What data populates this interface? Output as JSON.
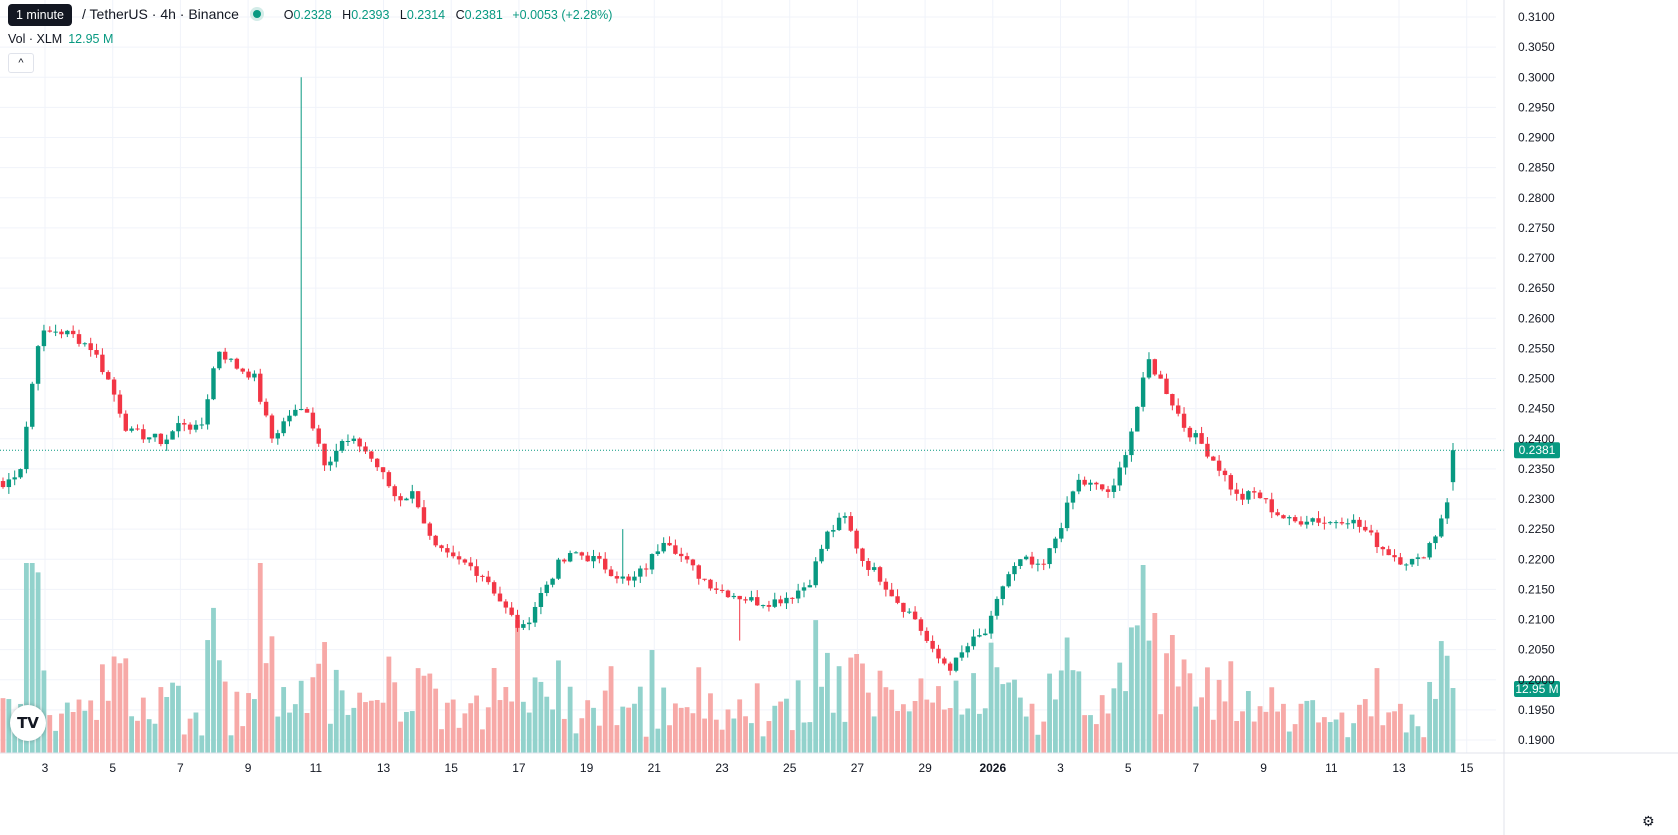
{
  "tooltip": "1 minute",
  "header": {
    "title": "/ TetherUS · 4h · Binance",
    "o_label": "O",
    "o": "0.2328",
    "h_label": "H",
    "h": "0.2393",
    "l_label": "L",
    "l": "0.2314",
    "c_label": "C",
    "c": "0.2381",
    "change": "+0.0053 (+2.28%)"
  },
  "volume": {
    "label": "Vol · XLM",
    "value": "12.95 M"
  },
  "collapse_icon": "chevron-up-icon",
  "logo_icon": "tradingview-logo-icon",
  "settings_icon": "gear-icon",
  "colors": {
    "up": "#089981",
    "down": "#f23645",
    "up_vol": "#92d2cc",
    "down_vol": "#f7a9a7"
  },
  "chart_data": {
    "type": "candlestick",
    "ylim": [
      0.1875,
      0.3115
    ],
    "y_ticks": [
      "0.3100",
      "0.3050",
      "0.3000",
      "0.2950",
      "0.2900",
      "0.2850",
      "0.2800",
      "0.2750",
      "0.2700",
      "0.2650",
      "0.2600",
      "0.2550",
      "0.2500",
      "0.2450",
      "0.2400",
      "0.2350",
      "0.2300",
      "0.2250",
      "0.2200",
      "0.2150",
      "0.2100",
      "0.2050",
      "0.2000",
      "0.1950",
      "0.1900"
    ],
    "x_ticks": [
      "3",
      "5",
      "7",
      "9",
      "11",
      "13",
      "15",
      "17",
      "19",
      "21",
      "23",
      "25",
      "27",
      "29",
      "2026",
      "3",
      "5",
      "7",
      "9",
      "11",
      "13",
      "15"
    ],
    "last_price": "0.2381",
    "last_volume": "12.95 M",
    "anchors": [
      [
        0.232,
        0.2335,
        0.2282,
        0.227
      ],
      [
        0.2355,
        0.2395,
        0.234,
        0.233
      ],
      [
        0.257,
        0.26,
        0.252,
        0.251
      ],
      [
        0.258,
        0.263,
        0.256,
        0.254
      ],
      [
        0.257,
        0.261,
        0.2545,
        0.253
      ],
      [
        0.255,
        0.258,
        0.252,
        0.25
      ],
      [
        0.249,
        0.252,
        0.246,
        0.245
      ],
      [
        0.241,
        0.244,
        0.238,
        0.237
      ],
      [
        0.2405,
        0.243,
        0.2385,
        0.2375
      ],
      [
        0.2395,
        0.242,
        0.236,
        0.234
      ],
      [
        0.243,
        0.247,
        0.24,
        0.239
      ],
      [
        0.241,
        0.245,
        0.239,
        0.238
      ],
      [
        0.255,
        0.259,
        0.25,
        0.248
      ],
      [
        0.252,
        0.256,
        0.25,
        0.249
      ],
      [
        0.2505,
        0.256,
        0.249,
        0.248
      ],
      [
        0.24,
        0.3,
        0.239,
        0.237
      ],
      [
        0.244,
        0.249,
        0.24,
        0.239
      ],
      [
        0.245,
        0.248,
        0.242,
        0.24
      ],
      [
        0.236,
        0.242,
        0.234,
        0.232
      ],
      [
        0.2395,
        0.241,
        0.238,
        0.237
      ],
      [
        0.239,
        0.2405,
        0.2375,
        0.236
      ],
      [
        0.235,
        0.238,
        0.232,
        0.231
      ],
      [
        0.23,
        0.232,
        0.227,
        0.226
      ],
      [
        0.231,
        0.233,
        0.228,
        0.227
      ],
      [
        0.222,
        0.226,
        0.219,
        0.216
      ],
      [
        0.22,
        0.224,
        0.216,
        0.215
      ],
      [
        0.219,
        0.223,
        0.217,
        0.216
      ],
      [
        0.217,
        0.22,
        0.213,
        0.212
      ],
      [
        0.212,
        0.216,
        0.209,
        0.208
      ],
      [
        0.208,
        0.213,
        0.204,
        0.203
      ],
      [
        0.214,
        0.218,
        0.21,
        0.209
      ],
      [
        0.219,
        0.222,
        0.216,
        0.215
      ],
      [
        0.221,
        0.223,
        0.219,
        0.218
      ],
      [
        0.22,
        0.223,
        0.219,
        0.217
      ],
      [
        0.218,
        0.22,
        0.216,
        0.215
      ],
      [
        0.216,
        0.219,
        0.215,
        0.214
      ],
      [
        0.219,
        0.222,
        0.217,
        0.216
      ],
      [
        0.224,
        0.2265,
        0.22,
        0.219
      ],
      [
        0.22,
        0.223,
        0.217,
        0.216
      ],
      [
        0.217,
        0.22,
        0.215,
        0.214
      ],
      [
        0.215,
        0.218,
        0.212,
        0.211
      ],
      [
        0.214,
        0.217,
        0.212,
        0.211
      ],
      [
        0.213,
        0.216,
        0.21,
        0.209
      ],
      [
        0.213,
        0.216,
        0.211,
        0.21
      ],
      [
        0.214,
        0.216,
        0.212,
        0.211
      ],
      [
        0.216,
        0.219,
        0.214,
        0.213
      ],
      [
        0.224,
        0.226,
        0.22,
        0.219
      ],
      [
        0.227,
        0.228,
        0.223,
        0.222
      ],
      [
        0.22,
        0.223,
        0.218,
        0.217
      ],
      [
        0.217,
        0.22,
        0.215,
        0.214
      ],
      [
        0.213,
        0.216,
        0.211,
        0.21
      ],
      [
        0.21,
        0.212,
        0.208,
        0.207
      ],
      [
        0.204,
        0.208,
        0.2,
        0.198
      ],
      [
        0.202,
        0.205,
        0.199,
        0.197
      ],
      [
        0.206,
        0.21,
        0.204,
        0.203
      ],
      [
        0.208,
        0.212,
        0.206,
        0.205
      ],
      [
        0.217,
        0.22,
        0.211,
        0.21
      ],
      [
        0.22,
        0.226,
        0.218,
        0.217
      ],
      [
        0.218,
        0.222,
        0.217,
        0.216
      ],
      [
        0.225,
        0.228,
        0.222,
        0.22
      ],
      [
        0.233,
        0.235,
        0.23,
        0.229
      ],
      [
        0.232,
        0.236,
        0.23,
        0.228
      ],
      [
        0.231,
        0.236,
        0.23,
        0.229
      ],
      [
        0.241,
        0.246,
        0.236,
        0.235
      ],
      [
        0.253,
        0.256,
        0.248,
        0.247
      ],
      [
        0.248,
        0.254,
        0.245,
        0.243
      ],
      [
        0.242,
        0.247,
        0.238,
        0.237
      ],
      [
        0.239,
        0.242,
        0.236,
        0.235
      ],
      [
        0.235,
        0.238,
        0.232,
        0.231
      ],
      [
        0.23,
        0.233,
        0.228,
        0.227
      ],
      [
        0.231,
        0.234,
        0.228,
        0.227
      ],
      [
        0.228,
        0.231,
        0.226,
        0.225
      ],
      [
        0.226,
        0.229,
        0.225,
        0.224
      ],
      [
        0.227,
        0.229,
        0.226,
        0.225
      ],
      [
        0.226,
        0.228,
        0.225,
        0.224
      ],
      [
        0.227,
        0.229,
        0.2255,
        0.2245
      ],
      [
        0.225,
        0.227,
        0.223,
        0.222
      ],
      [
        0.222,
        0.225,
        0.22,
        0.219
      ],
      [
        0.22,
        0.223,
        0.217,
        0.216
      ],
      [
        0.2195,
        0.221,
        0.218,
        0.2175
      ],
      [
        0.224,
        0.226,
        0.221,
        0.22
      ],
      [
        0.2328,
        0.2393,
        0.2314,
        0.2381
      ]
    ]
  }
}
